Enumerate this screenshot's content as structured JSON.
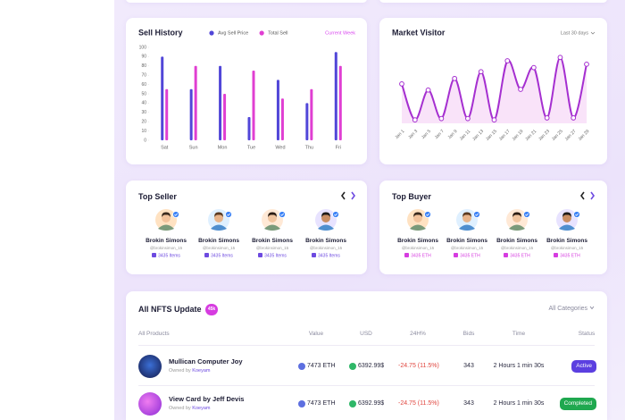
{
  "chart_data": [
    {
      "type": "bar",
      "title": "Sell History",
      "period": "Current Week",
      "categories": [
        "Sat",
        "Sun",
        "Mon",
        "Tue",
        "Wed",
        "Thu",
        "Fri"
      ],
      "series": [
        {
          "name": "Avg Sell Price",
          "color": "#5146d8",
          "values": [
            90,
            55,
            80,
            25,
            65,
            40,
            95
          ]
        },
        {
          "name": "Total Sell",
          "color": "#e03fd2",
          "values": [
            55,
            80,
            50,
            75,
            45,
            55,
            80
          ]
        }
      ],
      "ylim": [
        0,
        100
      ],
      "yticks": [
        0,
        10,
        20,
        30,
        40,
        50,
        60,
        70,
        80,
        90,
        100
      ]
    },
    {
      "type": "line",
      "title": "Market Visitor",
      "period": "Last 30 days",
      "categories": [
        "Jan 1",
        "Jan 3",
        "Jan 5",
        "Jan 7",
        "Jan 9",
        "Jan 11",
        "Jan 13",
        "Jan 15",
        "Jan 17",
        "Jan 19",
        "Jan 21",
        "Jan 23",
        "Jan 25",
        "Jan 27",
        "Jan 29"
      ],
      "values": [
        58,
        5,
        49,
        7,
        66,
        7,
        76,
        5,
        92,
        50,
        82,
        8,
        97,
        8,
        87
      ],
      "color": "#a52fd0",
      "ylim": [
        0,
        100
      ]
    }
  ],
  "top_seller": {
    "title": "Top Seller",
    "users": [
      {
        "name": "Brokin Simons",
        "handle": "@brokinsimon_15",
        "items": "3435 Items"
      },
      {
        "name": "Brokin Simons",
        "handle": "@brokinsimon_15",
        "items": "3435 Items"
      },
      {
        "name": "Brokin Simons",
        "handle": "@brokinsimon_15",
        "items": "3435 Items"
      },
      {
        "name": "Brokin Simons",
        "handle": "@brokinsimon_15",
        "items": "3435 Items"
      }
    ]
  },
  "top_buyer": {
    "title": "Top Buyer",
    "users": [
      {
        "name": "Brokin Simons",
        "handle": "@brokinsimon_15",
        "items": "3435 ETH"
      },
      {
        "name": "Brokin Simons",
        "handle": "@brokinsimon_15",
        "items": "3435 ETH"
      },
      {
        "name": "Brokin Simons",
        "handle": "@brokinsimon_15",
        "items": "3435 ETH"
      },
      {
        "name": "Brokin Simons",
        "handle": "@brokinsimon_15",
        "items": "3435 ETH"
      }
    ]
  },
  "nfts": {
    "title": "All NFTS Update",
    "badge": "45k",
    "filter": "All Categories",
    "columns": [
      "All Products",
      "Value",
      "USD",
      "24H%",
      "Bids",
      "Time",
      "Status"
    ],
    "rows": [
      {
        "product": "Mullican Computer Joy",
        "owned_by": "Owned by",
        "owner": "Koeyam",
        "value": "7473 ETH",
        "usd": "6392.99$",
        "change": "-24.75 (11.5%)",
        "bids": "343",
        "time": "2 Hours 1 min 30s",
        "status": "Active"
      },
      {
        "product": "View Card by Jeff Devis",
        "owned_by": "Owned by",
        "owner": "Koeyam",
        "value": "7473 ETH",
        "usd": "6392.99$",
        "change": "-24.75 (11.5%)",
        "bids": "343",
        "time": "2 Hours 1 min 30s",
        "status": "Completed"
      }
    ]
  }
}
